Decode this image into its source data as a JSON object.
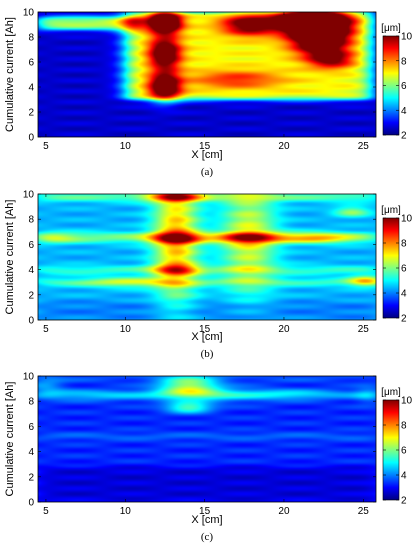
{
  "chart_data": [
    {
      "type": "heatmap",
      "panel_label": "(a)",
      "xlabel": "X [cm]",
      "ylabel": "Cumulative current [Ah]",
      "xlim": [
        4.5,
        25.8
      ],
      "ylim": [
        0,
        10
      ],
      "xticks": [
        5,
        10,
        15,
        20,
        25
      ],
      "yticks": [
        0,
        2,
        4,
        6,
        8,
        10
      ],
      "colorbar": {
        "label": "[μm]",
        "min": 2,
        "max": 10,
        "ticks": [
          2,
          4,
          6,
          8,
          10
        ]
      },
      "background": 2.6,
      "bands": [
        {
          "x": [
            10,
            25.5
          ],
          "y": [
            3,
            10
          ],
          "value": 4.4
        },
        {
          "x": [
            4.5,
            11
          ],
          "y": [
            8.6,
            9.6
          ],
          "value": 3.9
        }
      ],
      "hotspots": [
        {
          "x": 12.5,
          "y": 9.2,
          "sx": 0.7,
          "sy": 0.6,
          "value": 6.6
        },
        {
          "x": 12.5,
          "y": 6.7,
          "sx": 0.7,
          "sy": 0.9,
          "value": 4.6
        },
        {
          "x": 12.5,
          "y": 4.0,
          "sx": 0.7,
          "sy": 0.8,
          "value": 4.8
        },
        {
          "x": 17.8,
          "y": 9.0,
          "sx": 1.2,
          "sy": 0.6,
          "value": 3.8
        },
        {
          "x": 21.8,
          "y": 9.3,
          "sx": 1.5,
          "sy": 0.7,
          "value": 8.2
        },
        {
          "x": 22.3,
          "y": 7.9,
          "sx": 1.2,
          "sy": 0.9,
          "value": 6.0
        },
        {
          "x": 23.0,
          "y": 6.2,
          "sx": 1.0,
          "sy": 0.5,
          "value": 3.0
        },
        {
          "x": 17.0,
          "y": 4.6,
          "sx": 2.0,
          "sy": 0.5,
          "value": 1.8
        }
      ]
    },
    {
      "type": "heatmap",
      "panel_label": "(b)",
      "xlabel": "X [cm]",
      "ylabel": "Cumulative current [Ah]",
      "xlim": [
        4.5,
        25.8
      ],
      "ylim": [
        0,
        10
      ],
      "xticks": [
        5,
        10,
        15,
        20,
        25
      ],
      "yticks": [
        0,
        2,
        4,
        6,
        8,
        10
      ],
      "colorbar": {
        "label": "[μm]",
        "min": 2,
        "max": 10,
        "ticks": [
          2,
          4,
          6,
          8,
          10
        ]
      },
      "background": 4.4,
      "bands": [
        {
          "x": [
            4.5,
            25.8
          ],
          "y": [
            9.5,
            10
          ],
          "value": 1.6
        },
        {
          "x": [
            4.5,
            25.8
          ],
          "y": [
            6.2,
            6.9
          ],
          "value": 1.6
        },
        {
          "x": [
            4.5,
            25.8
          ],
          "y": [
            3.7,
            4.2
          ],
          "value": 1.2
        },
        {
          "x": [
            4.5,
            25.8
          ],
          "y": [
            2.8,
            3.2
          ],
          "value": 1.4
        },
        {
          "x": [
            4.5,
            25.8
          ],
          "y": [
            0,
            1.5
          ],
          "value": -0.4
        }
      ],
      "hotspots": [
        {
          "x": 13.2,
          "y": 6.5,
          "sx": 1.0,
          "sy": 3.5,
          "value": 3.2
        },
        {
          "x": 13.2,
          "y": 9.8,
          "sx": 1.2,
          "sy": 0.3,
          "value": 2.8
        },
        {
          "x": 13.2,
          "y": 6.5,
          "sx": 1.2,
          "sy": 0.3,
          "value": 2.5
        },
        {
          "x": 13.2,
          "y": 4.0,
          "sx": 1.0,
          "sy": 0.3,
          "value": 2.2
        },
        {
          "x": 17.8,
          "y": 6.5,
          "sx": 1.2,
          "sy": 3.0,
          "value": 2.4
        },
        {
          "x": 17.8,
          "y": 6.5,
          "sx": 1.5,
          "sy": 0.3,
          "value": 2.4
        },
        {
          "x": 22.0,
          "y": 6.5,
          "sx": 1.6,
          "sy": 0.3,
          "value": 2.0
        },
        {
          "x": 24.3,
          "y": 8.6,
          "sx": 0.8,
          "sy": 0.3,
          "value": 1.8
        },
        {
          "x": 25.2,
          "y": 3.1,
          "sx": 0.8,
          "sy": 0.3,
          "value": 2.5
        },
        {
          "x": 10.2,
          "y": 3.0,
          "sx": 2.0,
          "sy": 0.3,
          "value": 1.4
        },
        {
          "x": 5.5,
          "y": 6.5,
          "sx": 1.0,
          "sy": 0.3,
          "value": 1.0
        }
      ]
    },
    {
      "type": "heatmap",
      "panel_label": "(c)",
      "xlabel": "X [cm]",
      "ylabel": "Cumulative current [Ah]",
      "xlim": [
        4.5,
        25.8
      ],
      "ylim": [
        0,
        10
      ],
      "xticks": [
        5,
        10,
        15,
        20,
        25
      ],
      "yticks": [
        0,
        2,
        4,
        6,
        8,
        10
      ],
      "colorbar": {
        "label": "[μm]",
        "min": 2,
        "max": 10,
        "ticks": [
          2,
          4,
          6,
          8,
          10
        ]
      },
      "background": 3.3,
      "bands": [
        {
          "x": [
            4.5,
            25.8
          ],
          "y": [
            0,
            2.8
          ],
          "value": -0.6
        },
        {
          "x": [
            4.5,
            25.8
          ],
          "y": [
            8.3,
            8.8
          ],
          "value": 0.9
        },
        {
          "x": [
            4.5,
            25.8
          ],
          "y": [
            5.0,
            5.4
          ],
          "value": 0.6
        },
        {
          "x": [
            4.5,
            25.8
          ],
          "y": [
            9.6,
            10
          ],
          "value": 0.4
        }
      ],
      "hotspots": [
        {
          "x": 14.0,
          "y": 9.2,
          "sx": 1.3,
          "sy": 0.6,
          "value": 3.0
        },
        {
          "x": 14.0,
          "y": 7.5,
          "sx": 1.0,
          "sy": 0.3,
          "value": 2.4
        },
        {
          "x": 15.5,
          "y": 8.5,
          "sx": 2.5,
          "sy": 0.4,
          "value": 1.2
        },
        {
          "x": 20.5,
          "y": 8.5,
          "sx": 2.0,
          "sy": 0.3,
          "value": 0.8
        },
        {
          "x": 8.0,
          "y": 8.4,
          "sx": 2.5,
          "sy": 0.3,
          "value": 0.7
        },
        {
          "x": 5.0,
          "y": 9.2,
          "sx": 0.8,
          "sy": 0.5,
          "value": 0.9
        },
        {
          "x": 25.3,
          "y": 8.5,
          "sx": 0.6,
          "sy": 0.5,
          "value": 0.8
        }
      ]
    }
  ]
}
